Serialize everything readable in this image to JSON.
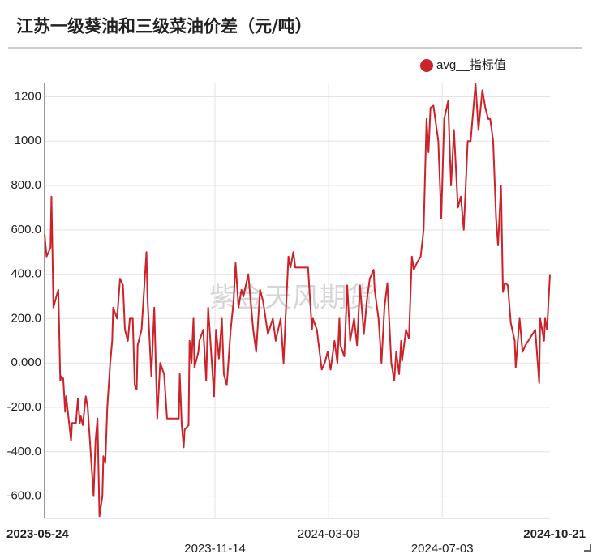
{
  "chart_data": {
    "type": "line",
    "title": "江苏一级葵油和三级菜油价差（元/吨）",
    "watermark": "紫金天风期货",
    "x": [
      "2023-05-24",
      "2023-05-26",
      "2023-05-30",
      "2023-05-31",
      "2023-06-02",
      "2023-06-05",
      "2023-06-07",
      "2023-06-09",
      "2023-06-10",
      "2023-06-12",
      "2023-06-14",
      "2023-06-15",
      "2023-06-17",
      "2023-06-20",
      "2023-06-21",
      "2023-06-25",
      "2023-06-27",
      "2023-06-29",
      "2023-06-30",
      "2023-07-02",
      "2023-07-05",
      "2023-07-07",
      "2023-07-10",
      "2023-07-13",
      "2023-07-15",
      "2023-07-17",
      "2023-07-19",
      "2023-07-22",
      "2023-07-23",
      "2023-07-25",
      "2023-07-27",
      "2023-07-30",
      "2023-08-01",
      "2023-08-02",
      "2023-08-06",
      "2023-08-09",
      "2023-08-12",
      "2023-08-14",
      "2023-08-17",
      "2023-08-19",
      "2023-08-22",
      "2023-08-24",
      "2023-08-26",
      "2023-08-27",
      "2023-08-31",
      "2023-09-05",
      "2023-09-06",
      "2023-09-10",
      "2023-09-13",
      "2023-09-16",
      "2023-09-19",
      "2023-09-23",
      "2023-09-26",
      "2023-09-28",
      "2023-10-08",
      "2023-10-09",
      "2023-10-11",
      "2023-10-13",
      "2023-10-14",
      "2023-10-18",
      "2023-10-19",
      "2023-10-21",
      "2023-10-23",
      "2023-10-24",
      "2023-10-28",
      "2023-10-29",
      "2023-11-02",
      "2023-11-05",
      "2023-11-07",
      "2023-11-10",
      "2023-11-13",
      "2023-11-15",
      "2023-11-18",
      "2023-11-21",
      "2023-11-23",
      "2023-11-26",
      "2023-11-30",
      "2023-12-03",
      "2023-12-05",
      "2023-12-08",
      "2023-12-11",
      "2023-12-13",
      "2023-12-18",
      "2023-12-20",
      "2023-12-23",
      "2023-12-26",
      "2023-12-30",
      "2024-01-02",
      "2024-01-07",
      "2024-01-12",
      "2024-01-15",
      "2024-01-20",
      "2024-01-23",
      "2024-01-25",
      "2024-01-28",
      "2024-01-30",
      "2024-02-02",
      "2024-02-04",
      "2024-02-17",
      "2024-02-21",
      "2024-02-22",
      "2024-02-26",
      "2024-03-02",
      "2024-03-05",
      "2024-03-08",
      "2024-03-11",
      "2024-03-15",
      "2024-03-18",
      "2024-03-20",
      "2024-03-21",
      "2024-03-25",
      "2024-03-28",
      "2024-03-31",
      "2024-04-04",
      "2024-04-07",
      "2024-04-10",
      "2024-04-14",
      "2024-04-17",
      "2024-04-20",
      "2024-04-24",
      "2024-04-25",
      "2024-04-29",
      "2024-05-02",
      "2024-05-05",
      "2024-05-08",
      "2024-05-12",
      "2024-05-15",
      "2024-05-17",
      "2024-05-20",
      "2024-05-22",
      "2024-05-23",
      "2024-05-27",
      "2024-05-30",
      "2024-06-02",
      "2024-06-04",
      "2024-06-07",
      "2024-06-11",
      "2024-06-14",
      "2024-06-17",
      "2024-06-19",
      "2024-06-21",
      "2024-06-24",
      "2024-06-29",
      "2024-07-02",
      "2024-07-05",
      "2024-07-09",
      "2024-07-12",
      "2024-07-15",
      "2024-07-19",
      "2024-07-22",
      "2024-07-25",
      "2024-07-29",
      "2024-08-01",
      "2024-08-06",
      "2024-08-09",
      "2024-08-13",
      "2024-08-16",
      "2024-08-19",
      "2024-08-21",
      "2024-08-24",
      "2024-08-27",
      "2024-08-29",
      "2024-09-01",
      "2024-09-03",
      "2024-09-05",
      "2024-09-08",
      "2024-09-11",
      "2024-09-15",
      "2024-09-16",
      "2024-09-20",
      "2024-09-23",
      "2024-09-26",
      "2024-10-06",
      "2024-10-10",
      "2024-10-11",
      "2024-10-15",
      "2024-10-16",
      "2024-10-18",
      "2024-10-21"
    ],
    "series": [
      {
        "name": "avg__指标值",
        "color": "#cc2229",
        "values": [
          580,
          480,
          520,
          750,
          250,
          300,
          330,
          -80,
          -60,
          -70,
          -220,
          -150,
          -230,
          -350,
          -270,
          -270,
          -160,
          -270,
          -240,
          -280,
          -150,
          -200,
          -400,
          -600,
          -350,
          -250,
          -690,
          -600,
          -420,
          -450,
          -200,
          0,
          100,
          250,
          200,
          380,
          350,
          150,
          100,
          200,
          200,
          -100,
          -120,
          80,
          150,
          500,
          300,
          -60,
          250,
          -250,
          0,
          -50,
          -250,
          -250,
          -250,
          -50,
          -280,
          -380,
          -300,
          -280,
          100,
          0,
          200,
          -20,
          50,
          100,
          150,
          -80,
          250,
          50,
          -150,
          150,
          20,
          200,
          -50,
          -100,
          150,
          280,
          450,
          250,
          330,
          300,
          400,
          300,
          150,
          50,
          330,
          280,
          130,
          200,
          100,
          200,
          0,
          200,
          480,
          430,
          500,
          430,
          430,
          150,
          200,
          150,
          -30,
          0,
          50,
          -30,
          100,
          0,
          200,
          80,
          30,
          350,
          100,
          200,
          80,
          350,
          130,
          280,
          380,
          420,
          330,
          200,
          0,
          250,
          360,
          0,
          -80,
          50,
          -50,
          100,
          10,
          150,
          110,
          480,
          420,
          450,
          480,
          600,
          1100,
          950,
          1150,
          1160,
          1000,
          650,
          1100,
          1180,
          800,
          1050,
          700,
          750,
          600,
          1000,
          1000,
          1260,
          1050,
          1230,
          1150,
          1100,
          1100,
          1000,
          650,
          530,
          800,
          320,
          360,
          350,
          180,
          100,
          -20,
          200,
          50,
          80,
          150,
          -90,
          200,
          100,
          200,
          150,
          400
        ]
      }
    ],
    "xlim": [
      "2023-05-24",
      "2024-10-21"
    ],
    "xticks": [
      "2023-05-24",
      "2023-11-14",
      "2024-03-09",
      "2024-07-03",
      "2024-10-21"
    ],
    "ylim": [
      -700,
      1260
    ],
    "yticks": [
      {
        "value": -600,
        "label": "-600.0"
      },
      {
        "value": -400,
        "label": "-400.0"
      },
      {
        "value": -200,
        "label": "-200.0"
      },
      {
        "value": 0,
        "label": "0.000"
      },
      {
        "value": 200,
        "label": "200.0"
      },
      {
        "value": 400,
        "label": "400.0"
      },
      {
        "value": 600,
        "label": "600.0"
      },
      {
        "value": 800,
        "label": "800.0"
      },
      1000,
      1200
    ],
    "grid": true,
    "legend": "top-right"
  }
}
